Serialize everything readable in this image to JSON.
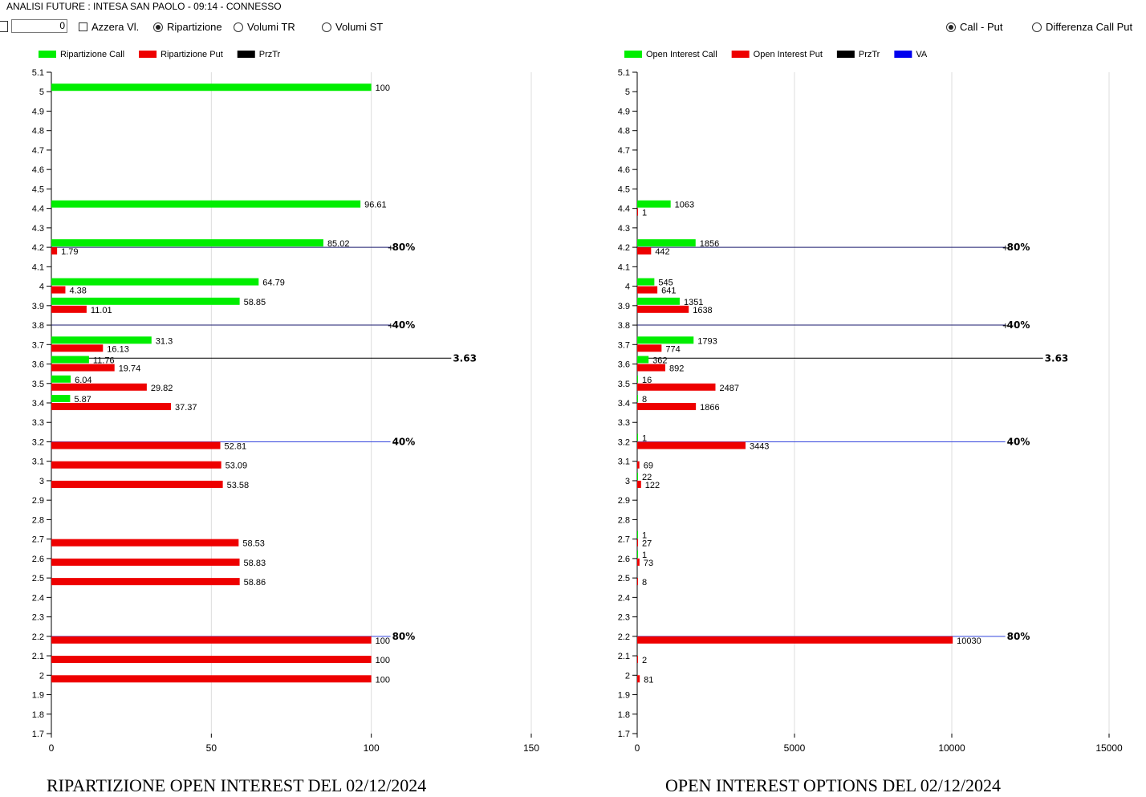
{
  "window": {
    "title": "ANALISI FUTURE : INTESA SAN PAOLO - 09:14 - CONNESSO"
  },
  "controls": {
    "numeric_value": "0",
    "azzera_label": "Azzera Vl.",
    "azzera_checked": false,
    "mode_options": [
      {
        "label": "Ripartizione",
        "selected": true
      },
      {
        "label": "Volumi TR",
        "selected": false
      },
      {
        "label": "Volumi ST",
        "selected": false
      }
    ],
    "view_options": [
      {
        "label": "Call - Put",
        "selected": true
      },
      {
        "label": "Differenza Call Put",
        "selected": false
      }
    ]
  },
  "colors": {
    "call": "#00ee00",
    "put": "#ee0000",
    "prztr": "#000000",
    "va": "#0000ee",
    "grid": "#dddddd"
  },
  "chart_data": [
    {
      "type": "bar",
      "orientation": "horizontal",
      "title": "RIPARTIZIONE OPEN INTEREST DEL 02/12/2024",
      "legend": [
        "Ripartizione Call",
        "Ripartizione Put",
        "PrzTr"
      ],
      "legend_placement": "top-left",
      "y_ticks": [
        "5.1",
        "5",
        "4.9",
        "4.8",
        "4.7",
        "4.6",
        "4.5",
        "4.4",
        "4.3",
        "4.2",
        "4.1",
        "4",
        "3.9",
        "3.8",
        "3.7",
        "3.6",
        "3.5",
        "3.4",
        "3.3",
        "3.2",
        "3.1",
        "3",
        "2.9",
        "2.8",
        "2.7",
        "2.6",
        "2.5",
        "2.4",
        "2.3",
        "2.2",
        "2.1",
        "2",
        "1.9",
        "1.8",
        "1.7"
      ],
      "x_ticks": [
        "0",
        "50",
        "100",
        "150"
      ],
      "xlim": [
        0,
        150
      ],
      "ylim": [
        1.7,
        5.1
      ],
      "grid": true,
      "call": [
        {
          "strike": 5,
          "value": 100,
          "label": "100"
        },
        {
          "strike": 4.4,
          "value": 96.61,
          "label": "96.61"
        },
        {
          "strike": 4.2,
          "value": 85.02,
          "label": "85.02"
        },
        {
          "strike": 4,
          "value": 64.79,
          "label": "64.79"
        },
        {
          "strike": 3.9,
          "value": 58.85,
          "label": "58.85"
        },
        {
          "strike": 3.7,
          "value": 31.3,
          "label": "31.3"
        },
        {
          "strike": 3.6,
          "value": 11.76,
          "label": "11.76"
        },
        {
          "strike": 3.5,
          "value": 6.04,
          "label": "6.04"
        },
        {
          "strike": 3.4,
          "value": 5.87,
          "label": "5.87"
        }
      ],
      "put": [
        {
          "strike": 4.2,
          "value": 1.79,
          "label": "1.79"
        },
        {
          "strike": 4,
          "value": 4.38,
          "label": "4.38"
        },
        {
          "strike": 3.9,
          "value": 11.01,
          "label": "11.01"
        },
        {
          "strike": 3.7,
          "value": 16.13,
          "label": "16.13"
        },
        {
          "strike": 3.6,
          "value": 19.74,
          "label": "19.74"
        },
        {
          "strike": 3.5,
          "value": 29.82,
          "label": "29.82"
        },
        {
          "strike": 3.4,
          "value": 37.37,
          "label": "37.37"
        },
        {
          "strike": 3.2,
          "value": 52.81,
          "label": "52.81"
        },
        {
          "strike": 3.1,
          "value": 53.09,
          "label": "53.09"
        },
        {
          "strike": 3,
          "value": 53.58,
          "label": "53.58"
        },
        {
          "strike": 2.7,
          "value": 58.53,
          "label": "58.53"
        },
        {
          "strike": 2.6,
          "value": 58.83,
          "label": "58.83"
        },
        {
          "strike": 2.5,
          "value": 58.86,
          "label": "58.86"
        },
        {
          "strike": 2.2,
          "value": 100,
          "label": "100"
        },
        {
          "strike": 2.1,
          "value": 100,
          "label": "100"
        },
        {
          "strike": 2,
          "value": 100,
          "label": "100"
        }
      ],
      "ref_lines": [
        {
          "level": 4.2,
          "label": "80%",
          "color": "#1a1a6e",
          "end": 106,
          "arrow": true
        },
        {
          "level": 3.8,
          "label": "40%",
          "color": "#1a1a6e",
          "end": 106,
          "arrow": true
        },
        {
          "level": 3.63,
          "label": "3.63",
          "color": "#000000",
          "end": 125,
          "arrow": false
        },
        {
          "level": 3.2,
          "label": "40%",
          "color": "#3344dd",
          "end": 106,
          "arrow": false
        },
        {
          "level": 2.2,
          "label": "80%",
          "color": "#3344dd",
          "end": 106,
          "arrow": false
        }
      ]
    },
    {
      "type": "bar",
      "orientation": "horizontal",
      "title": "OPEN INTEREST OPTIONS DEL 02/12/2024",
      "legend": [
        "Open Interest Call",
        "Open Interest Put",
        "PrzTr",
        "VA"
      ],
      "legend_placement": "top-left",
      "y_ticks": [
        "5.1",
        "5",
        "4.9",
        "4.8",
        "4.7",
        "4.6",
        "4.5",
        "4.4",
        "4.3",
        "4.2",
        "4.1",
        "4",
        "3.9",
        "3.8",
        "3.7",
        "3.6",
        "3.5",
        "3.4",
        "3.3",
        "3.2",
        "3.1",
        "3",
        "2.9",
        "2.8",
        "2.7",
        "2.6",
        "2.5",
        "2.4",
        "2.3",
        "2.2",
        "2.1",
        "2",
        "1.9",
        "1.8",
        "1.7"
      ],
      "x_ticks": [
        "0",
        "5000",
        "10000",
        "15000"
      ],
      "xlim": [
        0,
        15000
      ],
      "ylim": [
        1.7,
        5.1
      ],
      "grid": true,
      "call": [
        {
          "strike": 4.4,
          "value": 1063,
          "label": "1063"
        },
        {
          "strike": 4.2,
          "value": 1856,
          "label": "1856"
        },
        {
          "strike": 4,
          "value": 545,
          "label": "545"
        },
        {
          "strike": 3.9,
          "value": 1351,
          "label": "1351"
        },
        {
          "strike": 3.7,
          "value": 1793,
          "label": "1793"
        },
        {
          "strike": 3.6,
          "value": 362,
          "label": "362"
        },
        {
          "strike": 3.5,
          "value": 16,
          "label": "16"
        },
        {
          "strike": 3.4,
          "value": 8,
          "label": "8"
        },
        {
          "strike": 3.2,
          "value": 1,
          "label": "1"
        },
        {
          "strike": 3,
          "value": 22,
          "label": "22"
        },
        {
          "strike": 2.7,
          "value": 1,
          "label": "1"
        },
        {
          "strike": 2.6,
          "value": 1,
          "label": "1"
        }
      ],
      "put": [
        {
          "strike": 4.4,
          "value": 1,
          "label": "1"
        },
        {
          "strike": 4.2,
          "value": 442,
          "label": "442"
        },
        {
          "strike": 4,
          "value": 641,
          "label": "641"
        },
        {
          "strike": 3.9,
          "value": 1638,
          "label": "1638"
        },
        {
          "strike": 3.7,
          "value": 774,
          "label": "774"
        },
        {
          "strike": 3.6,
          "value": 892,
          "label": "892"
        },
        {
          "strike": 3.5,
          "value": 2487,
          "label": "2487"
        },
        {
          "strike": 3.4,
          "value": 1866,
          "label": "1866"
        },
        {
          "strike": 3.2,
          "value": 3443,
          "label": "3443"
        },
        {
          "strike": 3.1,
          "value": 69,
          "label": "69"
        },
        {
          "strike": 3,
          "value": 122,
          "label": "122"
        },
        {
          "strike": 2.7,
          "value": 27,
          "label": "27"
        },
        {
          "strike": 2.6,
          "value": 73,
          "label": "73"
        },
        {
          "strike": 2.5,
          "value": 8,
          "label": "8"
        },
        {
          "strike": 2.2,
          "value": 10030,
          "label": "10030"
        },
        {
          "strike": 2.1,
          "value": 2,
          "label": "2"
        },
        {
          "strike": 2,
          "value": 81,
          "label": "81"
        }
      ],
      "ref_lines": [
        {
          "level": 4.2,
          "label": "80%",
          "color": "#1a1a6e",
          "end": 11700,
          "arrow": true
        },
        {
          "level": 3.8,
          "label": "40%",
          "color": "#1a1a6e",
          "end": 11700,
          "arrow": true
        },
        {
          "level": 3.63,
          "label": "3.63",
          "color": "#000000",
          "end": 12900,
          "arrow": false
        },
        {
          "level": 3.2,
          "label": "40%",
          "color": "#3344dd",
          "end": 11700,
          "arrow": false
        },
        {
          "level": 2.2,
          "label": "80%",
          "color": "#3344dd",
          "end": 11700,
          "arrow": false
        }
      ]
    }
  ]
}
